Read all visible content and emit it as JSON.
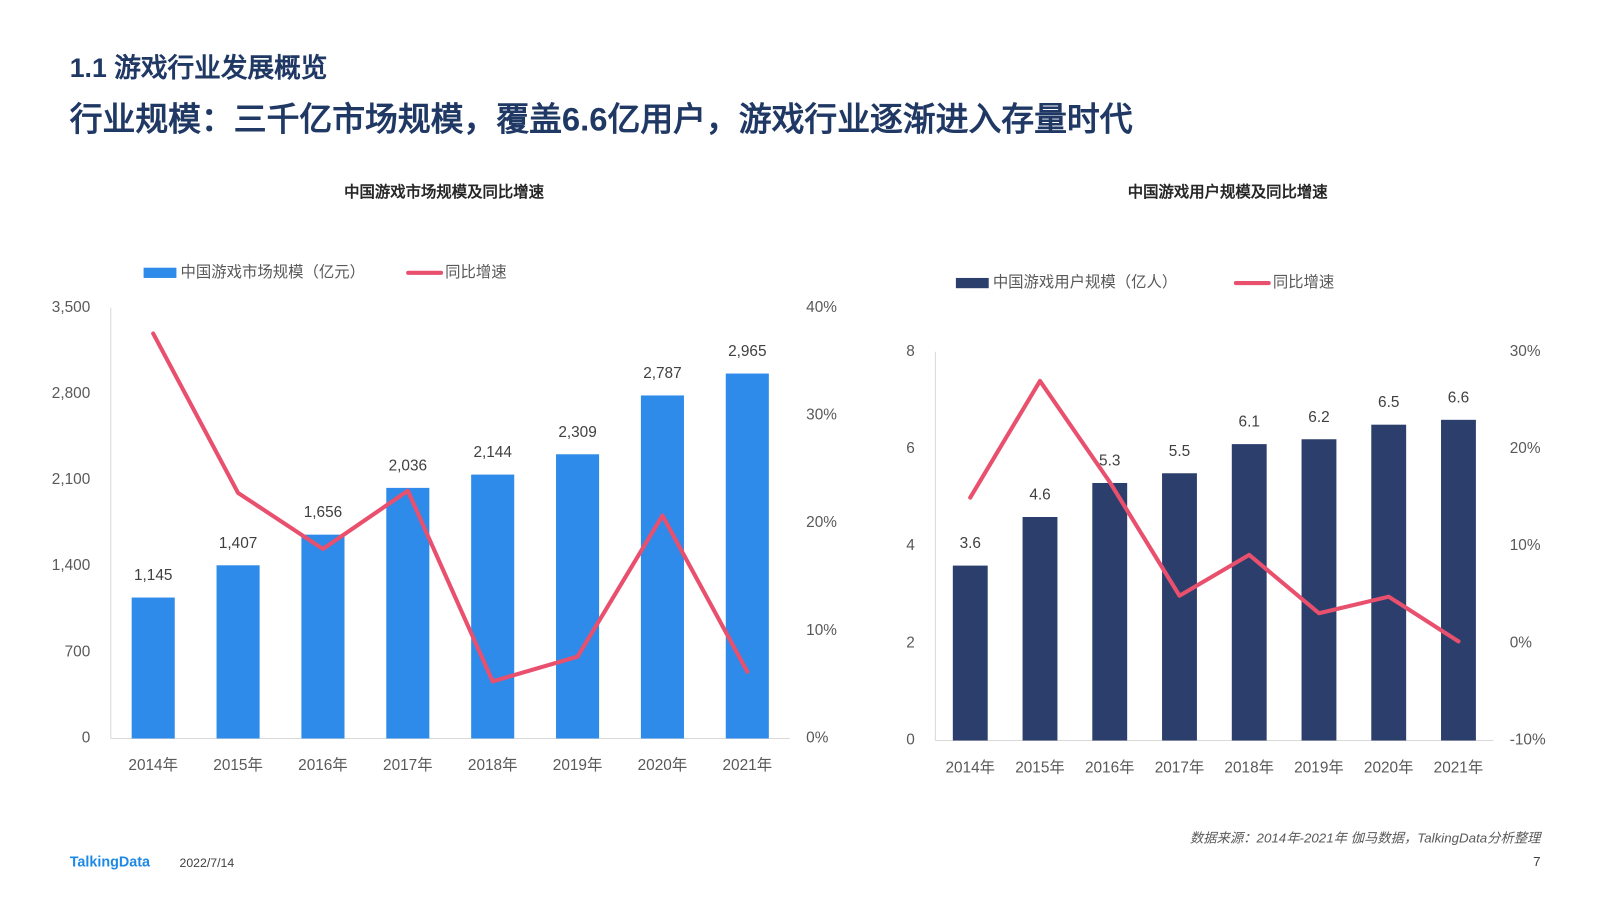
{
  "header": {
    "section": "1.1 游戏行业发展概览",
    "title": "行业规模：三千亿市场规模，覆盖6.6亿用户，游戏行业逐渐进入存量时代"
  },
  "footer": {
    "source": "数据来源：2014年-2021年 伽马数据，TalkingData分析整理",
    "logo": "TalkingData",
    "date": "2022/7/14",
    "page": "7"
  },
  "chart_data": [
    {
      "type": "bar",
      "title": "中国游戏市场规模及同比增速",
      "categories": [
        "2014年",
        "2015年",
        "2016年",
        "2017年",
        "2018年",
        "2019年",
        "2020年",
        "2021年"
      ],
      "series": [
        {
          "name": "中国游戏市场规模（亿元）",
          "type": "bar",
          "color": "#2e8be9",
          "axis": "y",
          "values": [
            1145,
            1407,
            1656,
            2036,
            2144,
            2309,
            2787,
            2965
          ],
          "value_labels": [
            "1,145",
            "1,407",
            "1,656",
            "2,036",
            "2,144",
            "2,309",
            "2,787",
            "2,965"
          ]
        },
        {
          "name": "同比增速",
          "type": "line",
          "color": "#e8506e",
          "axis": "y2",
          "values": [
            37.6,
            22.8,
            17.6,
            23.0,
            5.3,
            7.6,
            20.7,
            6.2
          ]
        }
      ],
      "ylim": [
        0,
        3500
      ],
      "yticks": [
        0,
        700,
        {
          "value": 1400,
          "label": "1,400"
        },
        {
          "value": 2100,
          "label": "2,100"
        },
        {
          "value": 2800,
          "label": "2,800"
        },
        {
          "value": 3500,
          "label": "3,500"
        }
      ],
      "y2lim": [
        0,
        40
      ],
      "y2ticks": [
        {
          "value": 0,
          "label": "0%"
        },
        {
          "value": 10,
          "label": "10%"
        },
        {
          "value": 20,
          "label": "20%"
        },
        {
          "value": 30,
          "label": "30%"
        },
        {
          "value": 40,
          "label": "40%"
        }
      ],
      "grid": false
    },
    {
      "type": "bar",
      "title": "中国游戏用户规模及同比增速",
      "categories": [
        "2014年",
        "2015年",
        "2016年",
        "2017年",
        "2018年",
        "2019年",
        "2020年",
        "2021年"
      ],
      "series": [
        {
          "name": "中国游戏用户规模（亿人）",
          "type": "bar",
          "color": "#2c3e6b",
          "axis": "y",
          "values": [
            3.6,
            4.6,
            5.3,
            5.5,
            6.1,
            6.2,
            6.5,
            6.6
          ]
        },
        {
          "name": "同比增速",
          "type": "line",
          "color": "#e8506e",
          "axis": "y2",
          "values": [
            15.0,
            27.0,
            16.6,
            4.9,
            9.1,
            3.1,
            4.8,
            0.2
          ]
        }
      ],
      "ylim": [
        0,
        8
      ],
      "yticks": [
        0,
        2,
        4,
        6,
        8
      ],
      "y2lim": [
        -10,
        30
      ],
      "y2ticks": [
        {
          "value": -10,
          "label": "-10%"
        },
        {
          "value": 0,
          "label": "0%"
        },
        {
          "value": 10,
          "label": "10%"
        },
        {
          "value": 20,
          "label": "20%"
        },
        {
          "value": 30,
          "label": "30%"
        }
      ],
      "grid": false
    }
  ]
}
